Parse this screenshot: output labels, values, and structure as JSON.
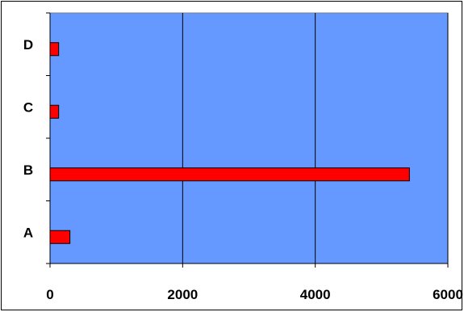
{
  "chart_data": {
    "type": "bar",
    "orientation": "horizontal",
    "categories": [
      "A",
      "B",
      "C",
      "D"
    ],
    "values": [
      300,
      5420,
      130,
      130
    ],
    "xlim": [
      0,
      6000
    ],
    "xticks": [
      "0",
      "2000",
      "4000",
      "6000"
    ],
    "grid": true,
    "legend": "none",
    "colors": {
      "plot_bg": "#6699FF",
      "bar": "#FF0000",
      "bar_edge": "#000000",
      "gridline": "#000000"
    }
  }
}
